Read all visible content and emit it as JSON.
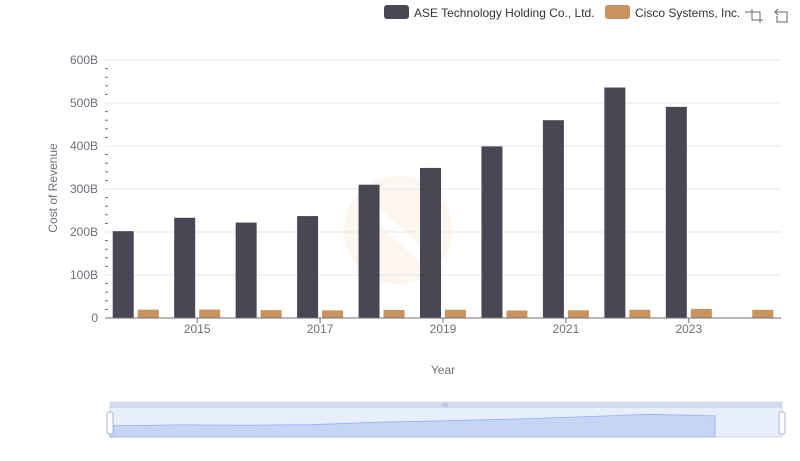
{
  "chart_data": {
    "type": "bar",
    "categories": [
      "2014",
      "2015",
      "2016",
      "2017",
      "2018",
      "2019",
      "2020",
      "2021",
      "2022",
      "2023",
      "2024"
    ],
    "x_tick_labels": [
      "2015",
      "2017",
      "2019",
      "2021",
      "2023"
    ],
    "xlabel": "Year",
    "ylabel": "Cost of Revenue",
    "ylim": [
      0,
      600
    ],
    "y_ticks": [
      0,
      100,
      200,
      300,
      400,
      500,
      600
    ],
    "y_tick_labels": [
      "0",
      "100B",
      "200B",
      "300B",
      "400B",
      "500B",
      "600B"
    ],
    "unit": "B",
    "grid": true,
    "legend_position": "top-right",
    "series": [
      {
        "name": "ASE Technology Holding Co., Ltd.",
        "color": "#484854",
        "values": [
          202,
          233,
          222,
          237,
          310,
          349,
          399,
          460,
          536,
          491,
          null
        ]
      },
      {
        "name": "Cisco Systems, Inc.",
        "color": "#c8935e",
        "values": [
          19.4,
          19.5,
          18.3,
          17.8,
          18.7,
          19.2,
          17.6,
          17.9,
          19.3,
          21.2,
          19.0
        ]
      }
    ]
  },
  "toolbox": {
    "icons": [
      "zoom-icon",
      "restore-icon"
    ]
  },
  "datazoom": {
    "range_start": 0,
    "range_end": 100
  }
}
